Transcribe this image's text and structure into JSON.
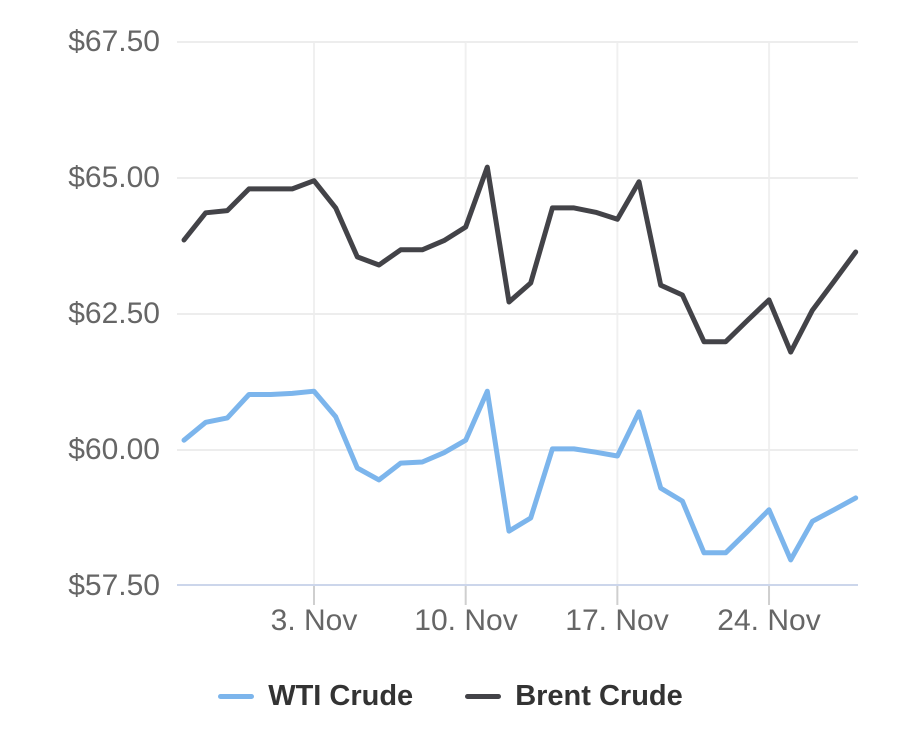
{
  "chart_data": {
    "type": "line",
    "title": "",
    "xlabel": "",
    "ylabel": "",
    "ylim": [
      57.5,
      67.5
    ],
    "grid": true,
    "legend_position": "bottom",
    "y_ticks": [
      67.5,
      65.0,
      62.5,
      60.0,
      57.5
    ],
    "y_tick_labels": [
      "$67.50",
      "$65.00",
      "$62.50",
      "$60.00",
      "$57.50"
    ],
    "x_tick_labels": [
      "3. Nov",
      "10. Nov",
      "17. Nov",
      "24. Nov"
    ],
    "x_tick_indices": [
      6,
      13,
      20,
      27
    ],
    "x": [
      "Oct 28",
      "Oct 29",
      "Oct 30",
      "Oct 31",
      "Nov 1",
      "Nov 2",
      "Nov 3",
      "Nov 4",
      "Nov 5",
      "Nov 6",
      "Nov 7",
      "Nov 8",
      "Nov 9",
      "Nov 10",
      "Nov 11",
      "Nov 12",
      "Nov 13",
      "Nov 14",
      "Nov 15",
      "Nov 16",
      "Nov 17",
      "Nov 18",
      "Nov 19",
      "Nov 20",
      "Nov 21",
      "Nov 22",
      "Nov 23",
      "Nov 24",
      "Nov 25",
      "Nov 26",
      "Nov 27",
      "Nov 28"
    ],
    "series": [
      {
        "name": "WTI Crude",
        "color": "#7cb5ec",
        "values": [
          60.18,
          60.51,
          60.59,
          61.02,
          61.02,
          61.04,
          61.08,
          60.61,
          59.67,
          59.45,
          59.76,
          59.78,
          59.95,
          60.18,
          61.08,
          58.51,
          58.75,
          60.02,
          60.02,
          59.96,
          59.89,
          60.7,
          59.3,
          59.06,
          58.11,
          58.11,
          58.5,
          58.9,
          57.98,
          58.69,
          58.9,
          59.12
        ]
      },
      {
        "name": "Brent Crude",
        "color": "#434348",
        "values": [
          63.86,
          64.36,
          64.4,
          64.8,
          64.8,
          64.8,
          64.95,
          64.45,
          63.55,
          63.4,
          63.68,
          63.68,
          63.85,
          64.1,
          65.2,
          62.72,
          63.07,
          64.45,
          64.45,
          64.37,
          64.24,
          64.93,
          63.03,
          62.85,
          61.99,
          61.99,
          62.38,
          62.76,
          61.8,
          62.57,
          63.1,
          63.64
        ]
      }
    ],
    "style": {
      "gridline_color": "#ededed",
      "axis_line_color": "#ccd6eb",
      "tick_color": "#cfcfcf",
      "label_color": "#666666",
      "legend_text_color": "#333333"
    }
  }
}
